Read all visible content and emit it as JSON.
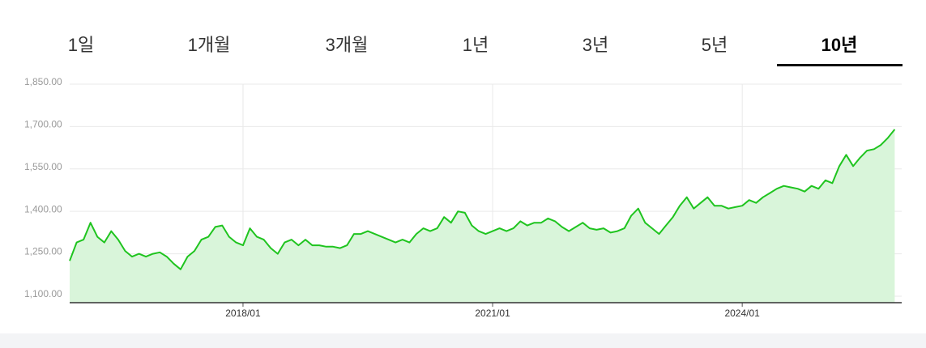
{
  "tabs": [
    "1일",
    "1개월",
    "3개월",
    "1년",
    "3년",
    "5년",
    "10년"
  ],
  "selected_tab": 6,
  "chart_data": {
    "type": "area",
    "color": "#1fc41f",
    "fill": "#d9f5da",
    "grid": true,
    "ylim": [
      1077,
      1850
    ],
    "yticks": [
      {
        "value": 1100,
        "label": "1,100.00"
      },
      {
        "value": 1250,
        "label": "1,250.00"
      },
      {
        "value": 1400,
        "label": "1,400.00"
      },
      {
        "value": 1550,
        "label": "1,550.00"
      },
      {
        "value": 1700,
        "label": "1,700.00"
      },
      {
        "value": 1850,
        "label": "1,850.00"
      }
    ],
    "xlim": [
      "2015/12",
      "2025/12"
    ],
    "xticks": [
      "2018/01",
      "2021/01",
      "2024/01"
    ],
    "x": [
      "2015/12",
      "2016/01",
      "2016/02",
      "2016/03",
      "2016/04",
      "2016/05",
      "2016/06",
      "2016/07",
      "2016/08",
      "2016/09",
      "2016/10",
      "2016/11",
      "2016/12",
      "2017/01",
      "2017/02",
      "2017/03",
      "2017/04",
      "2017/05",
      "2017/06",
      "2017/07",
      "2017/08",
      "2017/09",
      "2017/10",
      "2017/11",
      "2017/12",
      "2018/01",
      "2018/02",
      "2018/03",
      "2018/04",
      "2018/05",
      "2018/06",
      "2018/07",
      "2018/08",
      "2018/09",
      "2018/10",
      "2018/11",
      "2018/12",
      "2019/01",
      "2019/02",
      "2019/03",
      "2019/04",
      "2019/05",
      "2019/06",
      "2019/07",
      "2019/08",
      "2019/09",
      "2019/10",
      "2019/11",
      "2019/12",
      "2020/01",
      "2020/02",
      "2020/03",
      "2020/04",
      "2020/05",
      "2020/06",
      "2020/07",
      "2020/08",
      "2020/09",
      "2020/10",
      "2020/11",
      "2020/12",
      "2021/01",
      "2021/02",
      "2021/03",
      "2021/04",
      "2021/05",
      "2021/06",
      "2021/07",
      "2021/08",
      "2021/09",
      "2021/10",
      "2021/11",
      "2021/12",
      "2022/01",
      "2022/02",
      "2022/03",
      "2022/04",
      "2022/05",
      "2022/06",
      "2022/07",
      "2022/08",
      "2022/09",
      "2022/10",
      "2022/11",
      "2022/12",
      "2023/01",
      "2023/02",
      "2023/03",
      "2023/04",
      "2023/05",
      "2023/06",
      "2023/07",
      "2023/08",
      "2023/09",
      "2023/10",
      "2023/11",
      "2023/12",
      "2024/01",
      "2024/02",
      "2024/03",
      "2024/04",
      "2024/05",
      "2024/06",
      "2024/07",
      "2024/08",
      "2024/09",
      "2024/10",
      "2024/11",
      "2024/12",
      "2025/01",
      "2025/02",
      "2025/03",
      "2025/04",
      "2025/05",
      "2025/06",
      "2025/07",
      "2025/08",
      "2025/09",
      "2025/10",
      "2025/11"
    ],
    "values": [
      1225,
      1290,
      1300,
      1360,
      1310,
      1290,
      1330,
      1300,
      1260,
      1240,
      1250,
      1240,
      1250,
      1255,
      1240,
      1215,
      1195,
      1240,
      1260,
      1300,
      1310,
      1345,
      1350,
      1310,
      1290,
      1280,
      1340,
      1310,
      1300,
      1270,
      1250,
      1290,
      1300,
      1280,
      1300,
      1280,
      1280,
      1275,
      1275,
      1270,
      1280,
      1320,
      1320,
      1330,
      1320,
      1310,
      1300,
      1290,
      1300,
      1290,
      1320,
      1340,
      1330,
      1340,
      1380,
      1360,
      1400,
      1395,
      1350,
      1330,
      1320,
      1330,
      1340,
      1330,
      1340,
      1365,
      1350,
      1360,
      1360,
      1375,
      1365,
      1345,
      1330,
      1345,
      1360,
      1340,
      1335,
      1340,
      1325,
      1330,
      1340,
      1385,
      1410,
      1360,
      1340,
      1320,
      1350,
      1380,
      1420,
      1450,
      1410,
      1430,
      1450,
      1420,
      1420,
      1410,
      1415,
      1420,
      1440,
      1430,
      1450,
      1465,
      1480,
      1490,
      1485,
      1480,
      1470,
      1490,
      1480,
      1510,
      1500,
      1560,
      1600,
      1560,
      1590,
      1615,
      1620,
      1635,
      1660,
      1690
    ]
  }
}
